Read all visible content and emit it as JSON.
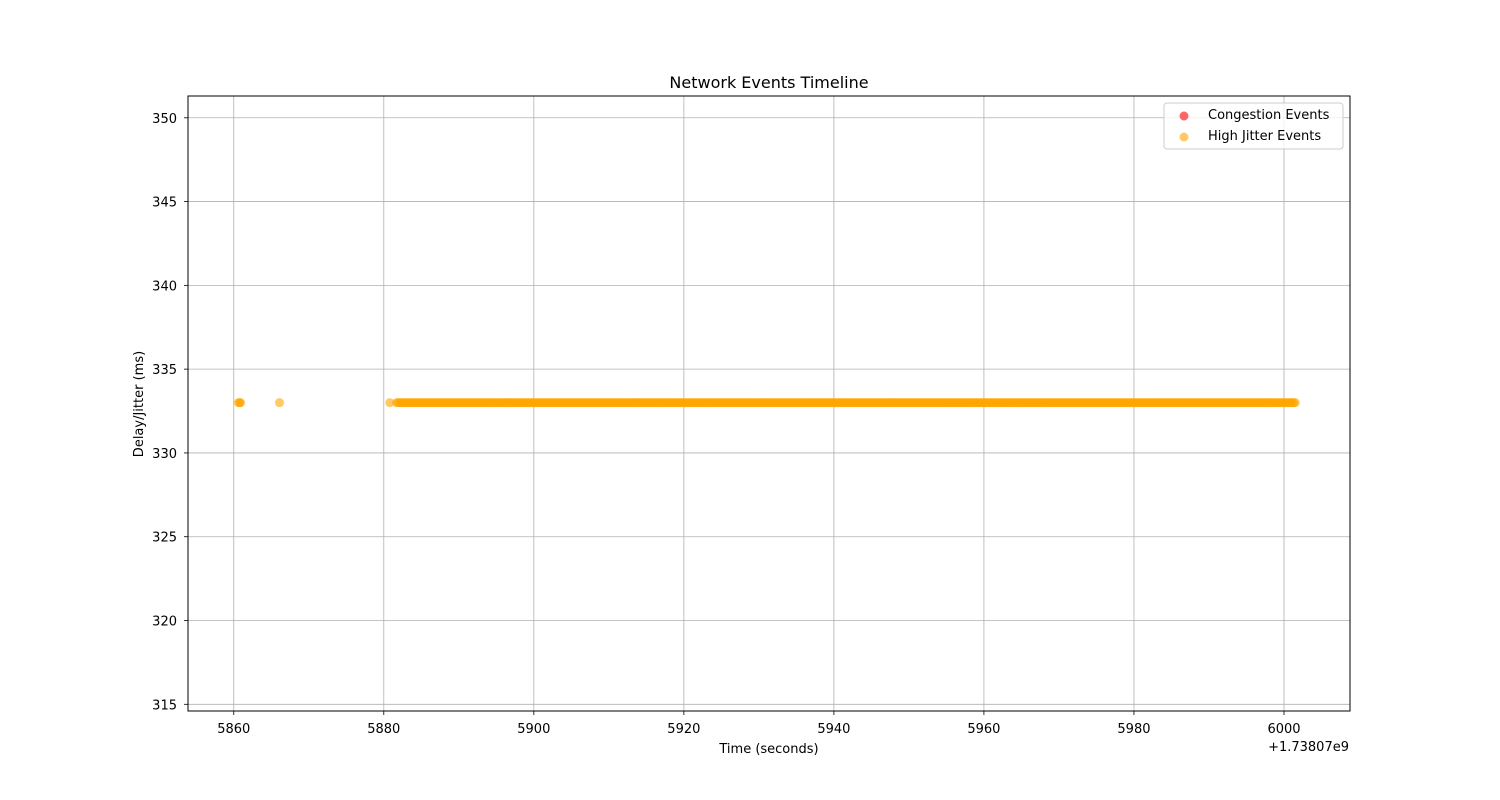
{
  "chart_data": {
    "type": "scatter",
    "title": "Network Events Timeline",
    "xlabel": "Time (seconds)",
    "ylabel": "Delay/Jitter (ms)",
    "x_offset_label": "+1.73807e9",
    "xlim": [
      5853.9,
      6008.8
    ],
    "ylim": [
      314.6,
      351.3
    ],
    "xticks": [
      5860,
      5880,
      5900,
      5920,
      5940,
      5960,
      5980,
      6000
    ],
    "xtick_labels": [
      "5860",
      "5880",
      "5900",
      "5920",
      "5940",
      "5960",
      "5980",
      "6000"
    ],
    "yticks": [
      315,
      320,
      325,
      330,
      335,
      340,
      345,
      350
    ],
    "ytick_labels": [
      "315",
      "320",
      "325",
      "330",
      "335",
      "340",
      "345",
      "350"
    ],
    "grid": true,
    "legend_position": "top-right",
    "series": [
      {
        "name": "Congestion Events",
        "color": "#ff0000",
        "alpha": 0.6,
        "x": [],
        "y": []
      },
      {
        "name": "High Jitter Events",
        "color": "#ffa500",
        "alpha": 0.6,
        "isolated_points": {
          "x": [
            5860.6,
            5860.8,
            5860.9,
            5866.1,
            5880.8
          ],
          "y": [
            333,
            333,
            333,
            333,
            333
          ]
        },
        "dense_run": {
          "x_start": 5881.7,
          "x_end": 6001.6,
          "step": 0.2,
          "y": 333
        }
      }
    ]
  }
}
